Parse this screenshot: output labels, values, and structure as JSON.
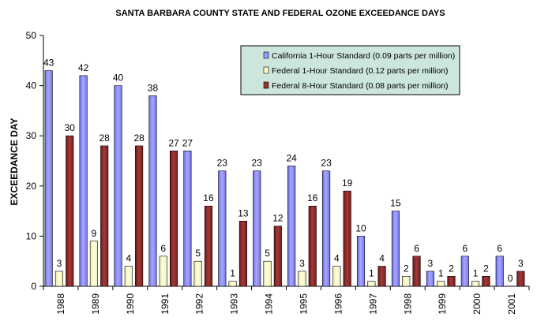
{
  "chart_data": {
    "type": "bar",
    "title": "SANTA BARBARA COUNTY STATE AND FEDERAL OZONE EXCEEDANCE DAYS",
    "xlabel": "",
    "ylabel": "EXCEEDANCE DAY",
    "ylim": [
      0,
      50
    ],
    "yticks": [
      0,
      10,
      20,
      30,
      40,
      50
    ],
    "grid": false,
    "legend_position": "top-right",
    "categories": [
      "1988",
      "1989",
      "1990",
      "1991",
      "1992",
      "1993",
      "1994",
      "1995",
      "1996",
      "1997",
      "1998",
      "1999",
      "2000",
      "2001"
    ],
    "series": [
      {
        "name": "California 1-Hour Standard (0.09 parts per million)",
        "color": "#9999FF",
        "values": [
          43,
          42,
          40,
          38,
          27,
          23,
          23,
          24,
          23,
          10,
          15,
          3,
          6,
          6
        ]
      },
      {
        "name": "Federal 1-Hour Standard (0.12 parts per million)",
        "color": "#FFFFCC",
        "values": [
          3,
          9,
          4,
          6,
          5,
          1,
          5,
          3,
          4,
          1,
          2,
          1,
          1,
          0
        ]
      },
      {
        "name": "Federal 8-Hour Standard (0.08 parts per million)",
        "color": "#993333",
        "values": [
          30,
          28,
          28,
          27,
          16,
          13,
          12,
          16,
          19,
          4,
          6,
          2,
          2,
          3
        ]
      }
    ],
    "legend_background": "#CCE6DC"
  }
}
